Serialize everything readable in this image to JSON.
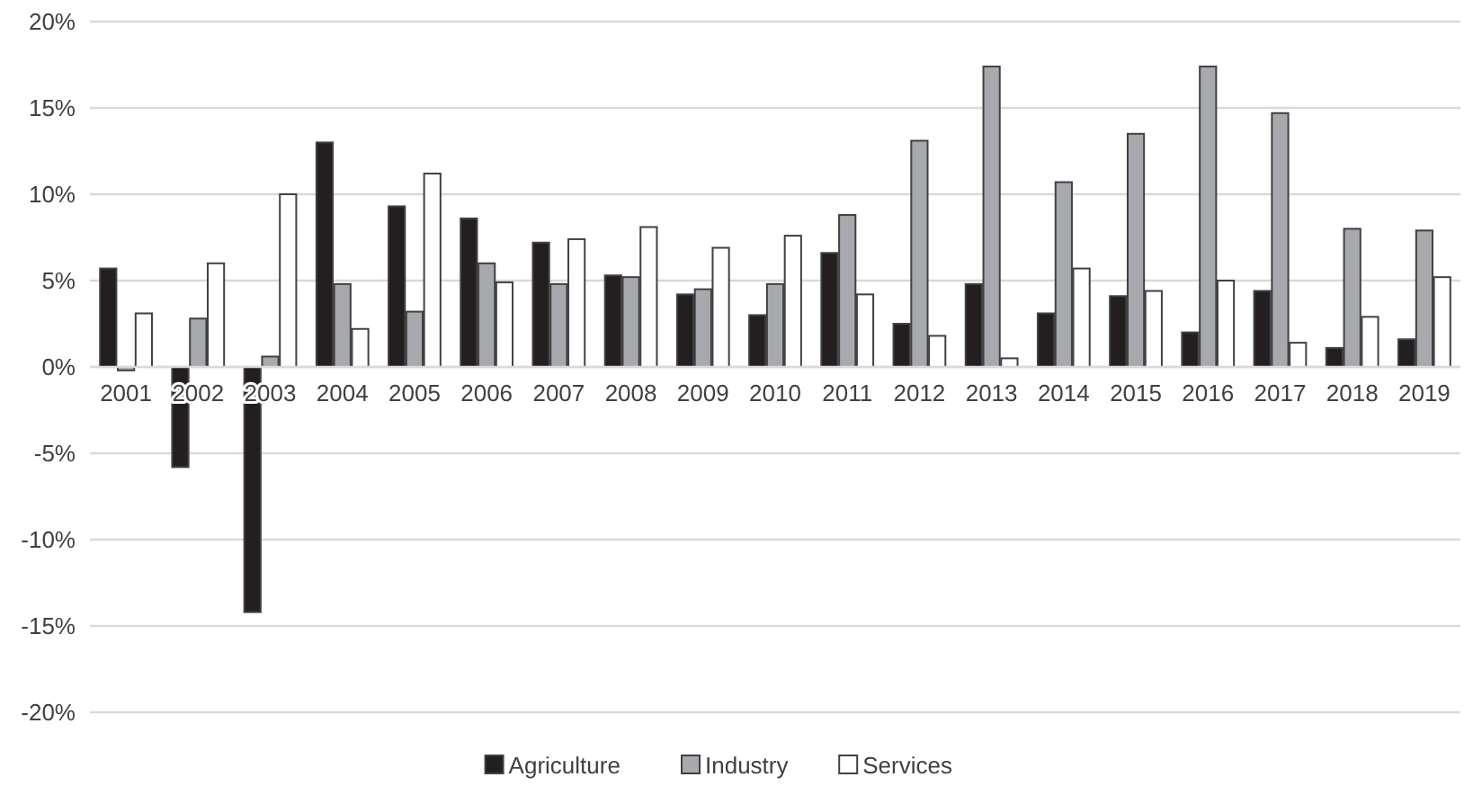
{
  "chart_data": {
    "type": "bar",
    "categories": [
      "2001",
      "2002",
      "2003",
      "2004",
      "2005",
      "2006",
      "2007",
      "2008",
      "2009",
      "2010",
      "2011",
      "2012",
      "2013",
      "2014",
      "2015",
      "2016",
      "2017",
      "2018",
      "2019"
    ],
    "series": [
      {
        "name": "Agriculture",
        "color": "#231f20",
        "values": [
          5.7,
          -5.8,
          -14.2,
          13.0,
          9.3,
          8.6,
          7.2,
          5.3,
          4.2,
          3.0,
          6.6,
          2.5,
          4.8,
          3.1,
          4.1,
          2.0,
          4.4,
          1.1,
          1.6
        ]
      },
      {
        "name": "Industry",
        "color": "#a7a9ac",
        "values": [
          -0.2,
          2.8,
          0.6,
          4.8,
          3.2,
          6.0,
          4.8,
          5.2,
          4.5,
          4.8,
          8.8,
          13.1,
          17.4,
          10.7,
          13.5,
          17.4,
          14.7,
          8.0,
          7.9
        ]
      },
      {
        "name": "Services",
        "color": "#ffffff",
        "values": [
          3.1,
          6.0,
          10.0,
          2.2,
          11.2,
          4.9,
          7.4,
          8.1,
          6.9,
          7.6,
          4.2,
          1.8,
          0.5,
          5.7,
          4.4,
          5.0,
          1.4,
          2.9,
          5.2
        ]
      }
    ],
    "ylim": [
      -20,
      20
    ],
    "yticks": [
      {
        "value": -20,
        "label": "-20%"
      },
      {
        "value": -15,
        "label": "-15%"
      },
      {
        "value": -10,
        "label": "-10%"
      },
      {
        "value": -5,
        "label": "-5%"
      },
      {
        "value": 0,
        "label": "0%"
      },
      {
        "value": 5,
        "label": "5%"
      },
      {
        "value": 10,
        "label": "10%"
      },
      {
        "value": 15,
        "label": "15%"
      },
      {
        "value": 20,
        "label": "20%"
      }
    ],
    "grid": "y",
    "legend": "bottom"
  }
}
